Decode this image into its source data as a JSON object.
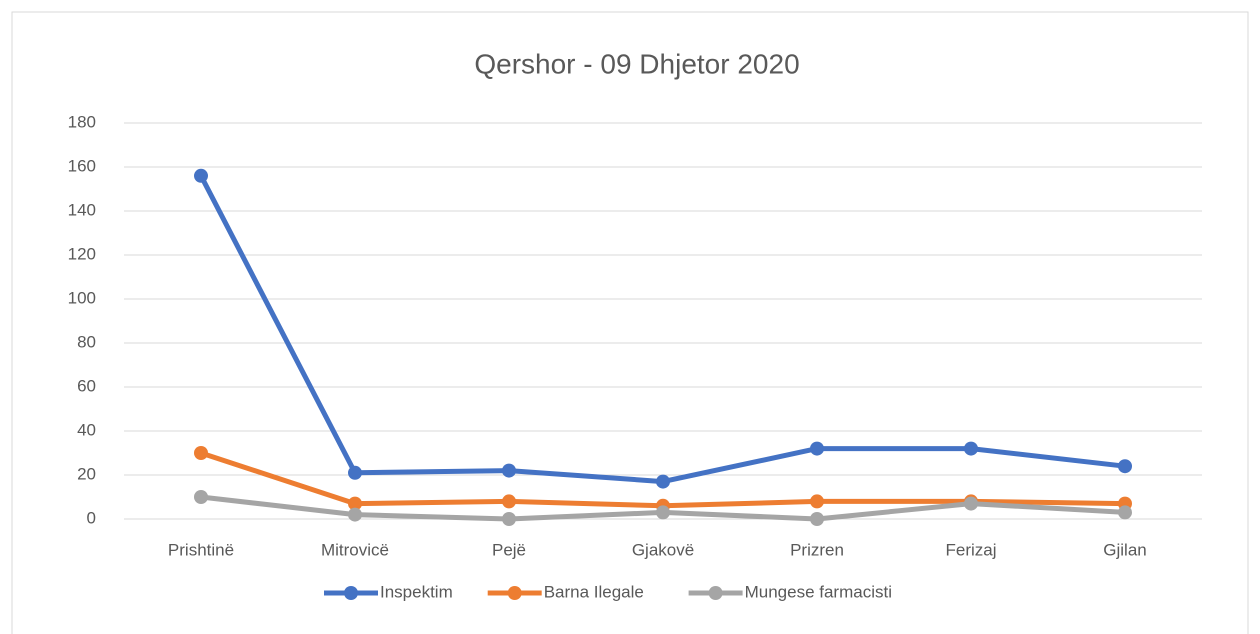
{
  "chart_data": {
    "type": "line",
    "title": "Qershor - 09 Dhjetor 2020",
    "categories": [
      "Prishtinë",
      "Mitrovicë",
      "Pejë",
      "Gjakovë",
      "Prizren",
      "Ferizaj",
      "Gjilan"
    ],
    "series": [
      {
        "name": "Inspektim",
        "color": "#4472c4",
        "values": [
          156,
          21,
          22,
          17,
          32,
          32,
          24
        ]
      },
      {
        "name": "Barna Ilegale",
        "color": "#ed7d31",
        "values": [
          30,
          7,
          8,
          6,
          8,
          8,
          7
        ]
      },
      {
        "name": "Mungese farmacisti",
        "color": "#a5a5a5",
        "values": [
          10,
          2,
          0,
          3,
          0,
          7,
          3
        ]
      }
    ],
    "ylim": [
      0,
      180
    ],
    "yticks": [
      0,
      20,
      40,
      60,
      80,
      100,
      120,
      140,
      160,
      180
    ],
    "grid": true,
    "legend": "bottom"
  }
}
